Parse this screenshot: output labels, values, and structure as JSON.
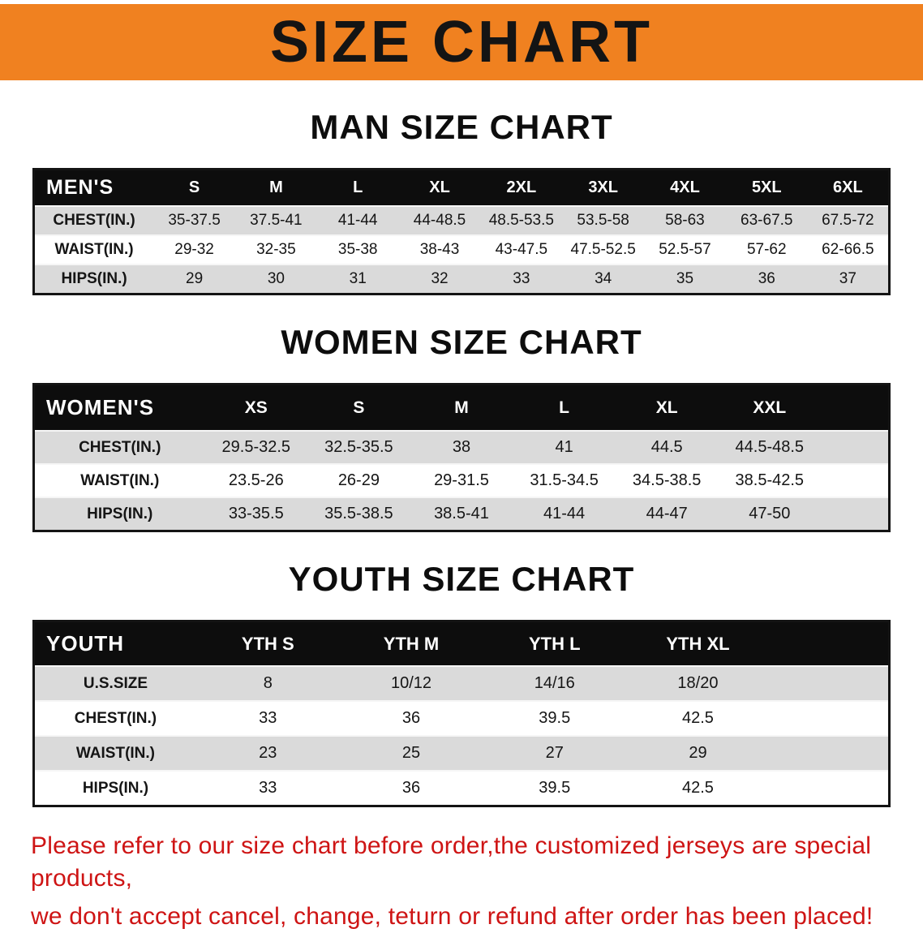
{
  "banner": {
    "title": "SIZE CHART"
  },
  "colors": {
    "banner_bg": "#F08120",
    "table_header_bg": "#0D0D0D",
    "row_alt": "#DADADA",
    "note_color": "#CE1414"
  },
  "sections": [
    {
      "heading": "MAN SIZE CHART",
      "table": {
        "header": [
          "MEN'S",
          "S",
          "M",
          "L",
          "XL",
          "2XL",
          "3XL",
          "4XL",
          "5XL",
          "6XL"
        ],
        "rows": [
          [
            "CHEST(IN.)",
            "35-37.5",
            "37.5-41",
            "41-44",
            "44-48.5",
            "48.5-53.5",
            "53.5-58",
            "58-63",
            "63-67.5",
            "67.5-72"
          ],
          [
            "WAIST(IN.)",
            "29-32",
            "32-35",
            "35-38",
            "38-43",
            "43-47.5",
            "47.5-52.5",
            "52.5-57",
            "57-62",
            "62-66.5"
          ],
          [
            "HIPS(IN.)",
            "29",
            "30",
            "31",
            "32",
            "33",
            "34",
            "35",
            "36",
            "37"
          ]
        ]
      }
    },
    {
      "heading": "WOMEN SIZE CHART",
      "table": {
        "header": [
          "WOMEN'S",
          "XS",
          "S",
          "M",
          "L",
          "XL",
          "XXL"
        ],
        "rows": [
          [
            "CHEST(IN.)",
            "29.5-32.5",
            "32.5-35.5",
            "38",
            "41",
            "44.5",
            "44.5-48.5"
          ],
          [
            "WAIST(IN.)",
            "23.5-26",
            "26-29",
            "29-31.5",
            "31.5-34.5",
            "34.5-38.5",
            "38.5-42.5"
          ],
          [
            "HIPS(IN.)",
            "33-35.5",
            "35.5-38.5",
            "38.5-41",
            "41-44",
            "44-47",
            "47-50"
          ]
        ]
      }
    },
    {
      "heading": "YOUTH SIZE CHART",
      "table": {
        "header": [
          "YOUTH",
          "YTH S",
          "YTH M",
          "YTH L",
          "YTH XL"
        ],
        "rows": [
          [
            "U.S.SIZE",
            "8",
            "10/12",
            "14/16",
            "18/20"
          ],
          [
            "CHEST(IN.)",
            "33",
            "36",
            "39.5",
            "42.5"
          ],
          [
            "WAIST(IN.)",
            "23",
            "25",
            "27",
            "29"
          ],
          [
            "HIPS(IN.)",
            "33",
            "36",
            "39.5",
            "42.5"
          ]
        ]
      }
    }
  ],
  "note": {
    "line1": "Please refer to our size chart before order,the customized jerseys are special products,",
    "line2": "we don't accept cancel, change, teturn or refund after order has been placed!"
  }
}
